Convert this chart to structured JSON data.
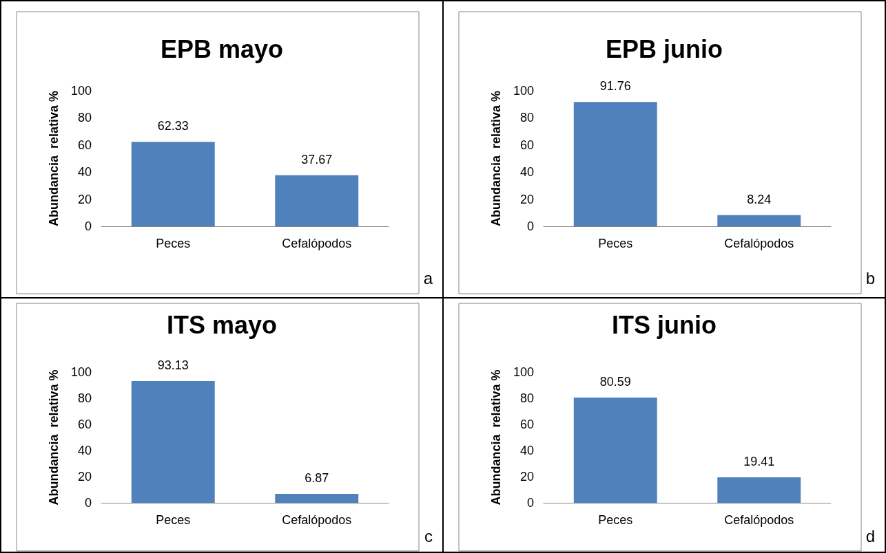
{
  "chart_data": [
    {
      "type": "bar",
      "title": "EPB mayo",
      "ylabel": "Abundancia  relativa %",
      "categories": [
        "Peces",
        "Cefalópodos"
      ],
      "values": [
        62.33,
        37.67
      ],
      "color": "#4f81bd",
      "ylim": [
        0,
        100
      ],
      "yticks": [
        0,
        20,
        40,
        60,
        80,
        100
      ],
      "data_labels": true,
      "annotations": [
        "a"
      ]
    },
    {
      "type": "bar",
      "title": "EPB junio",
      "ylabel": "Abundancia  relativa %",
      "categories": [
        "Peces",
        "Cefalópodos"
      ],
      "values": [
        91.76,
        8.24
      ],
      "color": "#4f81bd",
      "ylim": [
        0,
        100
      ],
      "yticks": [
        0,
        20,
        40,
        60,
        80,
        100
      ],
      "data_labels": true,
      "annotations": [
        "b"
      ]
    },
    {
      "type": "bar",
      "title": "ITS mayo",
      "ylabel": "Abundancia  relativa %",
      "categories": [
        "Peces",
        "Cefalópodos"
      ],
      "values": [
        93.13,
        6.87
      ],
      "color": "#4f81bd",
      "ylim": [
        0,
        100
      ],
      "yticks": [
        0,
        20,
        40,
        60,
        80,
        100
      ],
      "data_labels": true,
      "annotations": [
        "c"
      ]
    },
    {
      "type": "bar",
      "title": "ITS junio",
      "ylabel": "Abundancia  relativa %",
      "categories": [
        "Peces",
        "Cefalópodos"
      ],
      "values": [
        80.59,
        19.41
      ],
      "color": "#4f81bd",
      "ylim": [
        0,
        100
      ],
      "yticks": [
        0,
        20,
        40,
        60,
        80,
        100
      ],
      "data_labels": true,
      "annotations": [
        "d"
      ]
    }
  ]
}
